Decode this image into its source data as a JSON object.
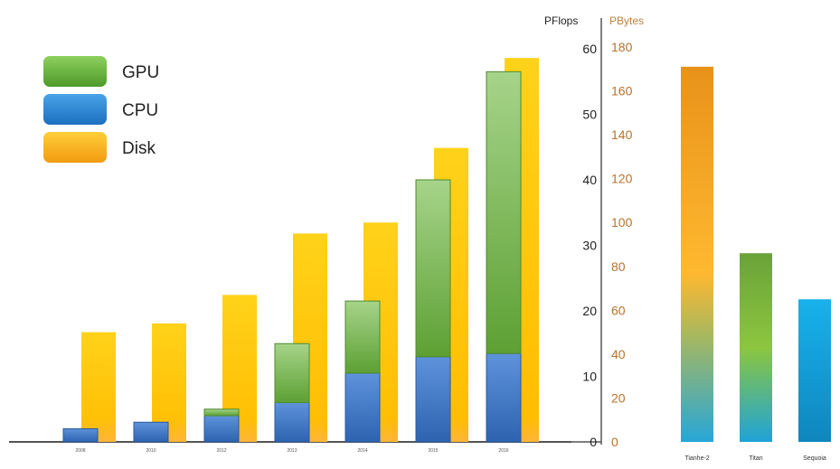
{
  "chart_data": {
    "type": "bar",
    "categories": [
      "2008",
      "2010",
      "2012",
      "2013",
      "2014",
      "2015",
      "2016"
    ],
    "series": [
      {
        "name": "CPU",
        "axis": "PFlops",
        "values": [
          2,
          3,
          4,
          6,
          10.5,
          13,
          13.5
        ],
        "color": "#3a78c9"
      },
      {
        "name": "GPU",
        "axis": "PFlops",
        "values": [
          0,
          0,
          1,
          9,
          11,
          27,
          43
        ],
        "color": "#6bb33f"
      },
      {
        "name": "Disk",
        "axis": "PBytes",
        "values": [
          50,
          54,
          67,
          95,
          100,
          134,
          175
        ],
        "color": "#ffc400"
      }
    ],
    "machines": [
      {
        "name": "Tianhe-2",
        "value": 171,
        "axis": "PBytes"
      },
      {
        "name": "Titan",
        "value": 86,
        "axis": "PBytes"
      },
      {
        "name": "Sequoia",
        "value": 65,
        "axis": "PBytes"
      }
    ],
    "y_left": {
      "label": "PFlops",
      "range": [
        0,
        60
      ],
      "ticks": [
        "0",
        "10",
        "20",
        "30",
        "40",
        "50",
        "60"
      ]
    },
    "y_right": {
      "label": "PBytes",
      "range": [
        0,
        180
      ],
      "ticks": [
        "0",
        "20",
        "40",
        "60",
        "80",
        "100",
        "120",
        "140",
        "160",
        "180"
      ]
    },
    "legend": {
      "position": "top-left",
      "items": [
        "GPU",
        "CPU",
        "Disk"
      ]
    },
    "grid": false
  },
  "colors": {
    "gpu": "#6bb33f",
    "cpu": "#3a78c9",
    "disk": "#ffc400",
    "pbytes_axis": "#b8732a",
    "axis": "#555555"
  }
}
